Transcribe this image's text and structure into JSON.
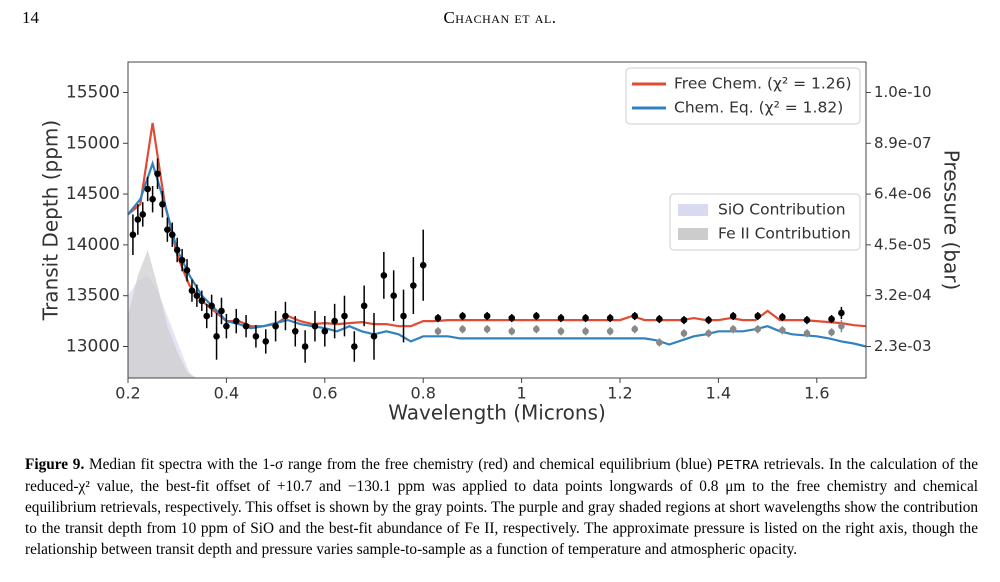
{
  "header": {
    "page_number": "14",
    "authors": "Chachan et al."
  },
  "chart_data": {
    "type": "line",
    "xlabel": "Wavelength (Microns)",
    "ylabel": "Transit Depth (ppm)",
    "y2label": "Pressure (bar)",
    "xlim": [
      0.2,
      1.7
    ],
    "xticks": [
      0.2,
      0.4,
      0.6,
      0.8,
      1.0,
      1.2,
      1.4,
      1.6
    ],
    "ylim": [
      12690,
      15800
    ],
    "yticks": [
      13000,
      13500,
      14000,
      14500,
      15000,
      15500
    ],
    "y2ticks": [
      {
        "value": 1e-10,
        "label": "1.0e-10"
      },
      {
        "value": 8.9e-07,
        "label": "8.9e-07"
      },
      {
        "value": 6.4e-06,
        "label": "6.4e-06"
      },
      {
        "value": 4.5e-05,
        "label": "4.5e-05"
      },
      {
        "value": 0.00032,
        "label": "3.2e-04"
      },
      {
        "value": 0.0023,
        "label": "2.3e-03"
      }
    ],
    "legend": "upper right",
    "x": [
      0.2,
      0.225,
      0.25,
      0.275,
      0.3,
      0.325,
      0.35,
      0.375,
      0.4,
      0.425,
      0.45,
      0.475,
      0.5,
      0.525,
      0.55,
      0.575,
      0.6,
      0.625,
      0.65,
      0.675,
      0.7,
      0.725,
      0.75,
      0.775,
      0.8,
      0.825,
      0.85,
      0.875,
      0.9,
      0.925,
      0.95,
      0.975,
      1.0,
      1.025,
      1.05,
      1.075,
      1.1,
      1.125,
      1.15,
      1.175,
      1.2,
      1.225,
      1.25,
      1.275,
      1.3,
      1.325,
      1.35,
      1.375,
      1.4,
      1.425,
      1.45,
      1.475,
      1.5,
      1.525,
      1.55,
      1.575,
      1.6,
      1.625,
      1.65,
      1.675,
      1.7
    ],
    "series": [
      {
        "name": "Free Chem. (χ² = 1.26)",
        "color": "#e34a33",
        "values": [
          14300,
          14400,
          15200,
          14400,
          13900,
          13600,
          13450,
          13350,
          13250,
          13250,
          13200,
          13200,
          13220,
          13300,
          13250,
          13220,
          13230,
          13220,
          13230,
          13240,
          13220,
          13220,
          13200,
          13200,
          13250,
          13250,
          13260,
          13260,
          13260,
          13260,
          13260,
          13260,
          13260,
          13260,
          13260,
          13260,
          13260,
          13260,
          13260,
          13260,
          13260,
          13300,
          13260,
          13260,
          13260,
          13260,
          13280,
          13260,
          13260,
          13280,
          13260,
          13260,
          13350,
          13260,
          13260,
          13260,
          13250,
          13240,
          13230,
          13210,
          13200
        ]
      },
      {
        "name": "Chem. Eq. (χ² = 1.82)",
        "color": "#3182bd",
        "values": [
          14300,
          14450,
          14800,
          14400,
          13950,
          13700,
          13500,
          13380,
          13250,
          13220,
          13180,
          13200,
          13230,
          13260,
          13220,
          13200,
          13180,
          13150,
          13200,
          13150,
          13120,
          13150,
          13120,
          13050,
          13100,
          13100,
          13100,
          13080,
          13080,
          13080,
          13080,
          13080,
          13080,
          13080,
          13080,
          13080,
          13080,
          13080,
          13080,
          13080,
          13080,
          13080,
          13080,
          13060,
          13020,
          13060,
          13100,
          13120,
          13150,
          13150,
          13150,
          13170,
          13200,
          13150,
          13120,
          13110,
          13100,
          13080,
          13050,
          13030,
          13000
        ]
      }
    ],
    "data_points": {
      "color": "#000000",
      "x": [
        0.21,
        0.22,
        0.23,
        0.24,
        0.25,
        0.26,
        0.27,
        0.28,
        0.29,
        0.3,
        0.31,
        0.32,
        0.33,
        0.34,
        0.35,
        0.36,
        0.37,
        0.38,
        0.39,
        0.4,
        0.42,
        0.44,
        0.46,
        0.48,
        0.5,
        0.52,
        0.54,
        0.56,
        0.58,
        0.6,
        0.62,
        0.64,
        0.66,
        0.68,
        0.7,
        0.72,
        0.74,
        0.76,
        0.78,
        0.8,
        0.83,
        0.88,
        0.93,
        0.98,
        1.03,
        1.08,
        1.13,
        1.18,
        1.23,
        1.28,
        1.33,
        1.38,
        1.43,
        1.48,
        1.53,
        1.58,
        1.63,
        1.65
      ],
      "values": [
        14100,
        14250,
        14300,
        14550,
        14450,
        14700,
        14400,
        14150,
        14100,
        13950,
        13850,
        13750,
        13550,
        13500,
        13450,
        13300,
        13400,
        13100,
        13350,
        13200,
        13250,
        13200,
        13100,
        13050,
        13200,
        13300,
        13150,
        13000,
        13200,
        13150,
        13250,
        13300,
        13000,
        13400,
        13100,
        13700,
        13500,
        13300,
        13600,
        13800,
        13280,
        13300,
        13300,
        13280,
        13300,
        13280,
        13280,
        13280,
        13300,
        13270,
        13260,
        13260,
        13300,
        13300,
        13290,
        13260,
        13270,
        13330
      ],
      "errors": [
        200,
        150,
        120,
        120,
        130,
        150,
        130,
        120,
        120,
        120,
        110,
        110,
        110,
        110,
        100,
        120,
        110,
        230,
        130,
        120,
        120,
        110,
        110,
        120,
        150,
        140,
        150,
        160,
        150,
        150,
        170,
        200,
        150,
        200,
        230,
        230,
        250,
        260,
        280,
        350,
        40,
        40,
        40,
        40,
        40,
        40,
        40,
        40,
        40,
        40,
        40,
        40,
        40,
        40,
        40,
        40,
        40,
        60
      ]
    },
    "offset_points": {
      "color": "#888888",
      "x": [
        0.83,
        0.88,
        0.93,
        0.98,
        1.03,
        1.08,
        1.13,
        1.18,
        1.23,
        1.28,
        1.33,
        1.38,
        1.43,
        1.48,
        1.53,
        1.58,
        1.63,
        1.65
      ],
      "values": [
        13150,
        13170,
        13170,
        13150,
        13170,
        13150,
        13150,
        13150,
        13170,
        13040,
        13130,
        13130,
        13170,
        13170,
        13160,
        13130,
        13140,
        13200
      ],
      "errors": [
        40,
        40,
        40,
        40,
        40,
        40,
        40,
        40,
        40,
        40,
        40,
        40,
        40,
        40,
        40,
        40,
        40,
        60
      ]
    },
    "contributions": [
      {
        "name": "SiO Contribution",
        "color": "#d9d9f0",
        "x": [
          0.2,
          0.22,
          0.24,
          0.26,
          0.28,
          0.3,
          0.32,
          0.33
        ],
        "values": [
          13500,
          13650,
          13700,
          13550,
          13300,
          13050,
          12800,
          12690
        ]
      },
      {
        "name": "Fe II Contribution",
        "color": "#cccccc",
        "x": [
          0.2,
          0.22,
          0.24,
          0.26,
          0.28,
          0.3,
          0.32,
          0.34
        ],
        "values": [
          13300,
          13700,
          13950,
          13600,
          13200,
          12950,
          12750,
          12690
        ]
      }
    ],
    "contributions_legend": "center right"
  },
  "caption": {
    "label": "Figure 9.",
    "text_1": "Median fit spectra with the 1-σ range from the free chemistry (red) and chemical equilibrium (blue) ",
    "code": "PETRA",
    "text_2": " retrievals. In the calculation of the reduced-χ² value, the best-fit offset of +10.7 and −130.1 ppm was applied to data points longwards of 0.8 μm to the free chemistry and chemical equilibrium retrievals, respectively. This offset is shown by the gray points. The purple and gray shaded regions at short wavelengths show the contribution to the transit depth from 10 ppm of SiO and the best-fit abundance of Fe II, respectively. The approximate pressure is listed on the right axis, though the relationship between transit depth and pressure varies sample-to-sample as a function of temperature and atmospheric opacity."
  }
}
